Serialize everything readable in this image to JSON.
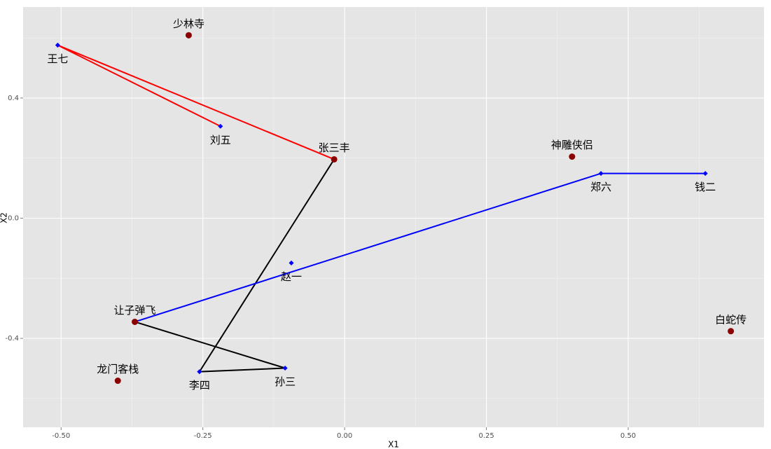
{
  "chart_data": {
    "type": "scatter",
    "xlabel": "X1",
    "ylabel": "X2",
    "xlim": [
      -0.567,
      0.7395
    ],
    "ylim": [
      -0.696,
      0.703
    ],
    "xticks": [
      {
        "value": -0.5,
        "label": "-0.50"
      },
      {
        "value": -0.25,
        "label": "-0.25"
      },
      {
        "value": 0,
        "label": "0.00"
      },
      {
        "value": 0.25,
        "label": "0.25"
      },
      {
        "value": 0.5,
        "label": "0.50"
      }
    ],
    "yticks": [
      -0.4,
      {
        "value": 0,
        "label": "0.0"
      },
      0.4
    ],
    "grid": true,
    "series": [
      {
        "type": "line",
        "color": "#ff0000",
        "x": [
          -0.219,
          -0.506,
          -0.0185
        ],
        "values": [
          0.306,
          0.576,
          0.196
        ]
      },
      {
        "type": "line",
        "color": "#000000",
        "x": [
          -0.0185,
          -0.256,
          -0.105,
          -0.37
        ],
        "values": [
          0.196,
          -0.511,
          -0.499,
          -0.345
        ]
      },
      {
        "type": "line",
        "color": "#0000ff",
        "x": [
          -0.37,
          0.452,
          0.636
        ],
        "values": [
          -0.345,
          0.149,
          0.149
        ]
      },
      {
        "type": "scatter",
        "color": "#0000ff",
        "label_side": "below",
        "x": [
          -0.506,
          -0.219,
          0.452,
          0.636,
          -0.094,
          -0.256,
          -0.105
        ],
        "values": [
          0.576,
          0.306,
          0.149,
          0.149,
          -0.149,
          -0.511,
          -0.499
        ],
        "labels": [
          "王七",
          "刘五",
          "郑六",
          "钱二",
          "赵一",
          "李四",
          "孙三"
        ]
      },
      {
        "type": "scatter",
        "color": "#8b0000",
        "label_side": "above",
        "x": [
          -0.275,
          -0.0185,
          0.401,
          0.681,
          -0.37,
          -0.4
        ],
        "values": [
          0.609,
          0.196,
          0.205,
          -0.376,
          -0.345,
          -0.541
        ],
        "labels": [
          "少林寺",
          "张三丰",
          "神雕侠侣",
          "白蛇传",
          "让子弹飞",
          "龙门客栈"
        ]
      }
    ]
  }
}
